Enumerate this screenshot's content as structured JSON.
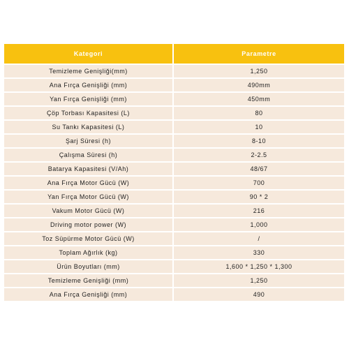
{
  "table": {
    "header": {
      "category": "Kategori",
      "parameter": "Parametre"
    },
    "rows": [
      {
        "category": "Temizleme Genişliği(mm)",
        "value": "1,250"
      },
      {
        "category": "Ana Fırça Genişliği (mm)",
        "value": "490mm"
      },
      {
        "category": "Yan Fırça Genişliği (mm)",
        "value": "450mm"
      },
      {
        "category": "Çöp Torbası Kapasitesi (L)",
        "value": "80"
      },
      {
        "category": "Su Tankı Kapasitesi (L)",
        "value": "10"
      },
      {
        "category": "Şarj Süresi (h)",
        "value": "8-10"
      },
      {
        "category": "Çalışma Süresi (h)",
        "value": "2-2.5"
      },
      {
        "category": "Batarya Kapasitesi (V/Ah)",
        "value": "48/67"
      },
      {
        "category": "Ana Fırça Motor Gücü (W)",
        "value": "700"
      },
      {
        "category": "Yan Fırça Motor Gücü (W)",
        "value": "90 * 2"
      },
      {
        "category": "Vakum Motor Gücü (W)",
        "value": "216"
      },
      {
        "category": "Driving motor power (W)",
        "value": "1,000"
      },
      {
        "category": "Toz Süpürme Motor Gücü (W)",
        "value": "/"
      },
      {
        "category": "Toplam Ağırlık (kg)",
        "value": "330"
      },
      {
        "category": "Ürün Boyutları (mm)",
        "value": "1,600 * 1,250 * 1,300"
      },
      {
        "category": "Temizleme Genişliği (mm)",
        "value": "1,250"
      },
      {
        "category": "Ana Fırça Genişliği (mm)",
        "value": "490"
      }
    ]
  },
  "colors": {
    "header_background": "#f8c10f",
    "header_text": "#ffffff",
    "row_background": "#f6e9dc",
    "row_text": "#222222"
  }
}
